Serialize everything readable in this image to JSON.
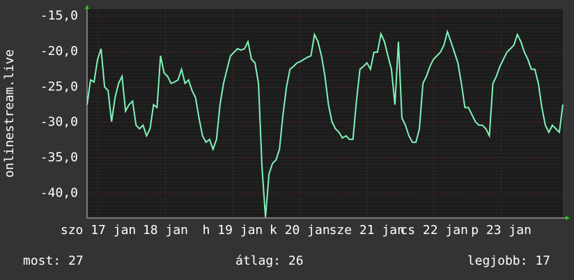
{
  "chart_data": {
    "type": "line",
    "ylabel": "onlinestream.live",
    "ylim": [
      -43.5,
      -14
    ],
    "yticks": [
      {
        "value": -15,
        "label": "-15,0"
      },
      {
        "value": -20,
        "label": "-20,0"
      },
      {
        "value": -25,
        "label": "-25,0"
      },
      {
        "value": -30,
        "label": "-30,0"
      },
      {
        "value": -35,
        "label": "-35,0"
      },
      {
        "value": -40,
        "label": "-40,0"
      }
    ],
    "xlim": [
      0,
      170
    ],
    "xticks": [
      {
        "value": 4,
        "label": "szo 17 jan"
      },
      {
        "value": 28,
        "label": "18 jan"
      },
      {
        "value": 52,
        "label": "h 19 jan"
      },
      {
        "value": 76,
        "label": "k 20 jan"
      },
      {
        "value": 100,
        "label": "sze 21 jan"
      },
      {
        "value": 124,
        "label": "cs 22 jan"
      },
      {
        "value": 148,
        "label": "p 23 jan"
      }
    ],
    "grid": true,
    "x": [
      0,
      1.25,
      2.5,
      3.75,
      5,
      6.25,
      7.5,
      8.75,
      10,
      11.25,
      12.5,
      13.75,
      15,
      16.25,
      17.5,
      18.75,
      20,
      21.25,
      22.5,
      23.75,
      25,
      26.25,
      27.5,
      28.75,
      30,
      31.25,
      32.5,
      33.75,
      35,
      36.25,
      37.5,
      38.75,
      40,
      41.25,
      42.5,
      43.75,
      45,
      46.25,
      47.5,
      48.75,
      50,
      51.25,
      52.5,
      53.75,
      55,
      56.25,
      57.5,
      58.75,
      60,
      61.25,
      62.5,
      63.75,
      65,
      66.25,
      67.5,
      68.75,
      70,
      71.25,
      72.5,
      73.75,
      75,
      76.25,
      77.5,
      78.75,
      80,
      81.25,
      82.5,
      83.75,
      85,
      86.25,
      87.5,
      88.75,
      90,
      91.25,
      92.5,
      93.75,
      95,
      96.25,
      97.5,
      98.75,
      100,
      101.25,
      102.5,
      103.75,
      105,
      106.25,
      107.5,
      108.75,
      110,
      111.25,
      112.5,
      113.75,
      115,
      116.25,
      117.5,
      118.75,
      120,
      121.25,
      122.5,
      123.75,
      125,
      126.25,
      127.5,
      128.75,
      130,
      131.25,
      132.5,
      133.75,
      135,
      136.25,
      137.5,
      138.75,
      140,
      141.25,
      142.5,
      143.75,
      145,
      146.25,
      147.5,
      148.75,
      150,
      151.25,
      152.5,
      153.75,
      155,
      156.25,
      157.5,
      158.75,
      160,
      161.25,
      162.5,
      163.75,
      165,
      166.25,
      167.5,
      168.75,
      170
    ],
    "series": [
      {
        "color": "#7ff5b8",
        "values": [
          -27.5,
          -24.0,
          -24.3,
          -21.1,
          -19.6,
          -25.0,
          -25.5,
          -29.9,
          -26.5,
          -24.5,
          -23.5,
          -28.4,
          -27.5,
          -27.0,
          -30.4,
          -30.9,
          -30.4,
          -31.9,
          -30.9,
          -27.5,
          -27.9,
          -20.6,
          -23.0,
          -23.5,
          -24.5,
          -24.3,
          -24.0,
          -22.5,
          -24.5,
          -24.0,
          -25.5,
          -26.5,
          -29.4,
          -31.9,
          -32.8,
          -32.4,
          -33.8,
          -32.4,
          -27.5,
          -24.5,
          -22.5,
          -20.6,
          -20.1,
          -19.6,
          -19.8,
          -19.6,
          -18.6,
          -21.1,
          -21.6,
          -24.5,
          -36.3,
          -43.4,
          -37.3,
          -35.8,
          -35.3,
          -33.8,
          -28.9,
          -25.0,
          -22.5,
          -22.1,
          -21.6,
          -21.4,
          -21.1,
          -20.8,
          -20.6,
          -17.6,
          -18.6,
          -20.6,
          -23.5,
          -27.5,
          -29.9,
          -30.9,
          -31.4,
          -32.2,
          -31.9,
          -32.4,
          -32.4,
          -27.0,
          -22.5,
          -22.1,
          -21.6,
          -22.5,
          -20.1,
          -20.1,
          -17.5,
          -18.6,
          -20.6,
          -22.5,
          -27.5,
          -18.6,
          -29.4,
          -30.4,
          -31.9,
          -32.8,
          -32.8,
          -30.9,
          -24.5,
          -23.5,
          -22.1,
          -21.1,
          -20.6,
          -20.1,
          -19.1,
          -17.2,
          -18.6,
          -20.1,
          -21.6,
          -24.5,
          -27.9,
          -27.9,
          -28.9,
          -29.9,
          -30.4,
          -30.4,
          -30.9,
          -31.9,
          -24.5,
          -23.5,
          -22.1,
          -21.1,
          -20.1,
          -19.6,
          -19.1,
          -17.6,
          -18.6,
          -20.1,
          -21.1,
          -22.5,
          -22.5,
          -24.5,
          -27.9,
          -30.4,
          -31.4,
          -30.4,
          -30.9,
          -31.4,
          -27.5
        ]
      }
    ],
    "stats": [
      "most: 27",
      "átlag: 26",
      "legjobb: 17"
    ]
  }
}
